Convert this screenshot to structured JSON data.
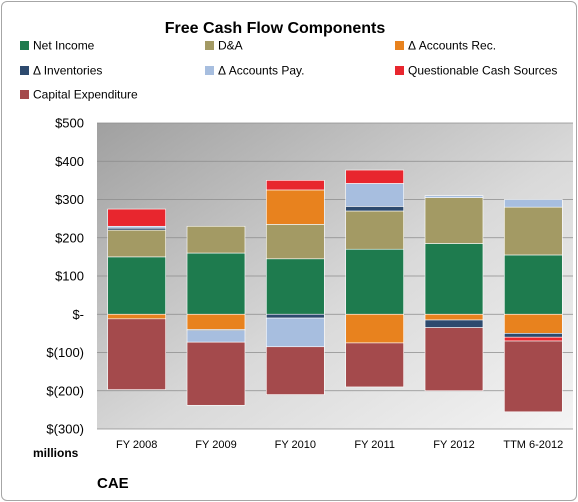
{
  "chart_data": {
    "type": "bar",
    "stacked": true,
    "title": "Free Cash Flow Components",
    "categories": [
      "FY 2008",
      "FY 2009",
      "FY 2010",
      "FY 2011",
      "FY 2012",
      "TTM 6-2012"
    ],
    "series": [
      {
        "name": "Net Income",
        "color": "#1e7b4e",
        "values": [
          150,
          160,
          145,
          170,
          185,
          155
        ]
      },
      {
        "name": "D&A",
        "color": "#a39a64",
        "values": [
          70,
          70,
          90,
          100,
          120,
          125
        ]
      },
      {
        "name": "Δ Accounts Rec.",
        "color": "#e8821e",
        "values": [
          -12,
          -40,
          90,
          -75,
          -15,
          -50
        ]
      },
      {
        "name": "Δ Inventories",
        "color": "#2d4a6e",
        "values": [
          5,
          -3,
          -10,
          12,
          -20,
          -10
        ]
      },
      {
        "name": "Δ Accounts Pay.",
        "color": "#a7bedf",
        "values": [
          5,
          -30,
          -75,
          60,
          5,
          20
        ]
      },
      {
        "name": "Questionable Cash Sources",
        "color": "#e8262e",
        "values": [
          45,
          0,
          25,
          35,
          0,
          -10
        ]
      },
      {
        "name": "Capital Expenditure",
        "color": "#a44a4c",
        "values": [
          -185,
          -165,
          -125,
          -115,
          -165,
          -185
        ]
      }
    ],
    "ylim": [
      -300,
      500
    ],
    "yticks": [
      {
        "value": 500,
        "label": "$500"
      },
      {
        "value": 400,
        "label": "$400"
      },
      {
        "value": 300,
        "label": "$300"
      },
      {
        "value": 200,
        "label": "$200"
      },
      {
        "value": 100,
        "label": "$100"
      },
      {
        "value": 0,
        "label": "$-"
      },
      {
        "value": -100,
        "label": "$(100)"
      },
      {
        "value": -200,
        "label": "$(200)"
      },
      {
        "value": -300,
        "label": "$(300)"
      }
    ],
    "ylabel": "millions",
    "legend_position": "top",
    "grid": true
  },
  "footer": {
    "company": "CAE"
  }
}
